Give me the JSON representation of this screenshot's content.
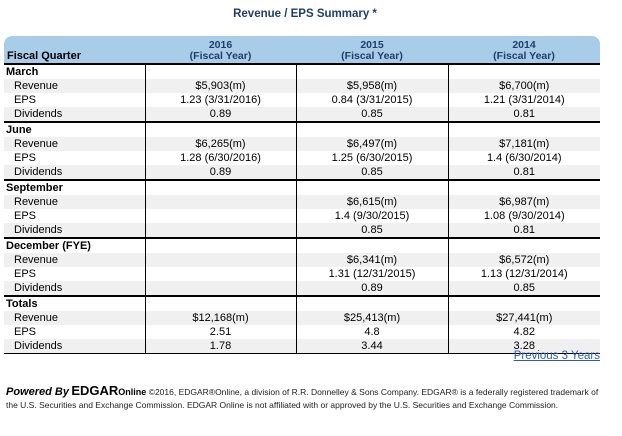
{
  "title": "Revenue / EPS Summary *",
  "header": {
    "fiscal_quarter": "Fiscal Quarter",
    "years": [
      {
        "year": "2016",
        "sub": "(Fiscal Year)"
      },
      {
        "year": "2015",
        "sub": "(Fiscal Year)"
      },
      {
        "year": "2014",
        "sub": "(Fiscal Year)"
      }
    ]
  },
  "sections": [
    {
      "name": "March",
      "rows": [
        {
          "label": "Revenue",
          "values": [
            "$5,903(m)",
            "$5,958(m)",
            "$6,700(m)"
          ]
        },
        {
          "label": "EPS",
          "values": [
            "1.23 (3/31/2016)",
            "0.84 (3/31/2015)",
            "1.21 (3/31/2014)"
          ]
        },
        {
          "label": "Dividends",
          "values": [
            "0.89",
            "0.85",
            "0.81"
          ]
        }
      ]
    },
    {
      "name": "June",
      "rows": [
        {
          "label": "Revenue",
          "values": [
            "$6,265(m)",
            "$6,497(m)",
            "$7,181(m)"
          ]
        },
        {
          "label": "EPS",
          "values": [
            "1.28 (6/30/2016)",
            "1.25 (6/30/2015)",
            "1.4 (6/30/2014)"
          ]
        },
        {
          "label": "Dividends",
          "values": [
            "0.89",
            "0.85",
            "0.81"
          ]
        }
      ]
    },
    {
      "name": "September",
      "rows": [
        {
          "label": "Revenue",
          "values": [
            "",
            "$6,615(m)",
            "$6,987(m)"
          ]
        },
        {
          "label": "EPS",
          "values": [
            "",
            "1.4 (9/30/2015)",
            "1.08 (9/30/2014)"
          ]
        },
        {
          "label": "Dividends",
          "values": [
            "",
            "0.85",
            "0.81"
          ]
        }
      ]
    },
    {
      "name": "December  (FYE)",
      "rows": [
        {
          "label": "Revenue",
          "values": [
            "",
            "$6,341(m)",
            "$6,572(m)"
          ]
        },
        {
          "label": "EPS",
          "values": [
            "",
            "1.31 (12/31/2015)",
            "1.13 (12/31/2014)"
          ]
        },
        {
          "label": "Dividends",
          "values": [
            "",
            "0.89",
            "0.85"
          ]
        }
      ]
    },
    {
      "name": "Totals",
      "rows": [
        {
          "label": "Revenue",
          "values": [
            "$12,168(m)",
            "$25,413(m)",
            "$27,441(m)"
          ]
        },
        {
          "label": "EPS",
          "values": [
            "2.51",
            "4.8",
            "4.82"
          ]
        },
        {
          "label": "Dividends",
          "values": [
            "1.78",
            "3.44",
            "3.28"
          ]
        }
      ]
    }
  ],
  "link": {
    "previous": "Previous 3 Years"
  },
  "footer": {
    "powered": "Powered By",
    "brand": "EDGAR",
    "brand_sub": "Online",
    "text": "©2016, EDGAR®Online, a division of R.R. Donnelley & Sons Company. EDGAR® is a federally registered trademark of the U.S. Securities and Exchange Commission. EDGAR Online is not affiliated with or approved by the U.S. Securities and Exchange Commission."
  },
  "colors": {
    "header_bg": "#a9cce8",
    "title": "#1f3f6a",
    "link": "#2a5db0",
    "alt_row": "#f0f0f0"
  }
}
